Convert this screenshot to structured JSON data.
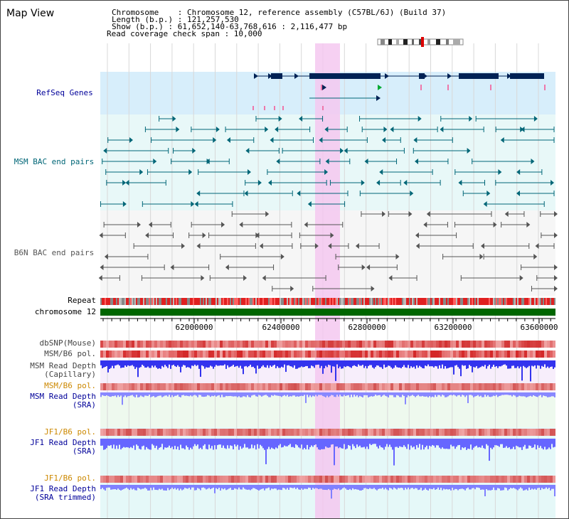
{
  "header": {
    "title": "Map View",
    "chromosome": "Chromosome    : Chromosome 12, reference assembly (C57BL/6J) (Build 37)",
    "length": "Length (b.p.) : 121,257,530",
    "show": "Show (b.p.) : 61,652,140-63,768,616 : 2,116,477 bp",
    "coverage": "Read coverage check span : 10,000"
  },
  "tracks": {
    "refseq": "RefSeq Genes",
    "msm_bac": "MSM BAC end pairs",
    "b6n_bac": "B6N BAC end pairs",
    "repeat": "Repeat",
    "chromosome": "chromosome 12",
    "dbsnp": "dbSNP(Mouse)",
    "msm_b6_pol": "MSM/B6 pol.",
    "msm_depth_cap_1": "MSM Read Depth",
    "msm_depth_cap_2": "(Capillary)",
    "msm_b6_pol2": "MSM/B6 pol.",
    "msm_depth_sra_1": "MSM Read Depth",
    "msm_depth_sra_2": "(SRA)",
    "jf1_b6_pol": "JF1/B6 pol.",
    "jf1_depth_sra_1": "JF1 Read Depth",
    "jf1_depth_sra_2": "(SRA)",
    "jf1_b6_pol2": "JF1/B6 pol.",
    "jf1_depth_trim_1": "JF1 Read Depth",
    "jf1_depth_trim_2": "(SRA trimmed)"
  },
  "axis": {
    "ticks": [
      "62000000",
      "62400000",
      "62800000",
      "63200000",
      "63600000"
    ]
  },
  "colors": {
    "refseq_label": "#000099",
    "bac_msm": "#006677",
    "bac_b6n": "#555555",
    "chromosome_bar": "#006600",
    "depth_blue": "#3333ff",
    "pol_orange": "#cc8800",
    "highlight": "#f5c8f0"
  }
}
